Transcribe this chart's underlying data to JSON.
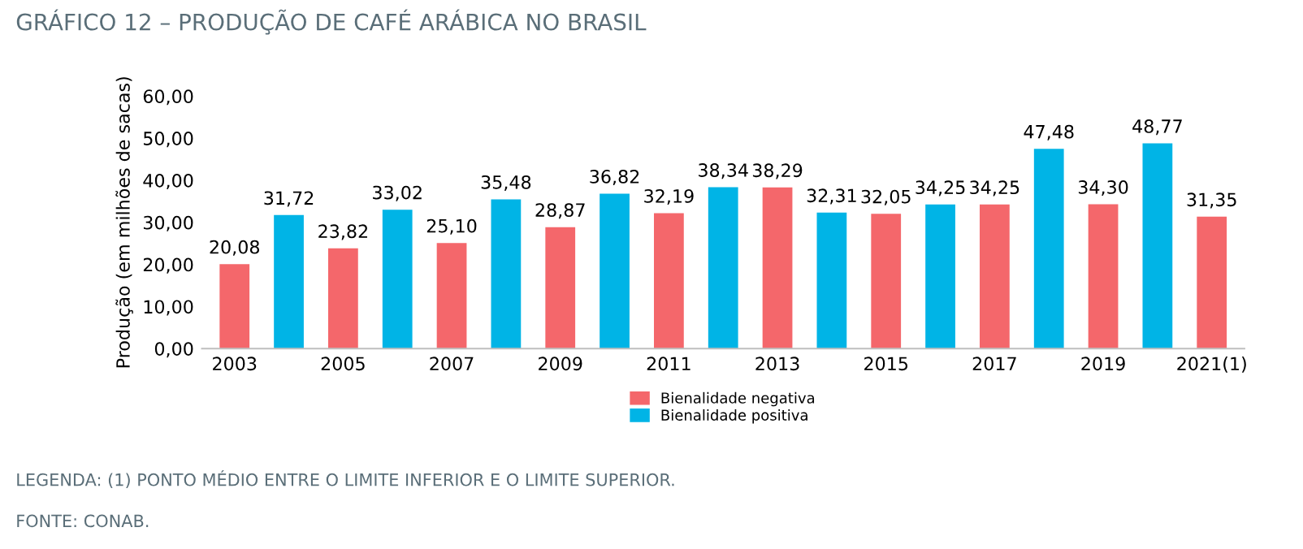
{
  "chart_data": {
    "type": "bar",
    "title": "GRÁFICO 12 – PRODUÇÃO DE CAFÉ ARÁBICA NO BRASIL",
    "ylabel": "Produção (em milhões de sacas)",
    "categories": [
      "2003",
      null,
      "2005",
      null,
      "2007",
      null,
      "2009",
      null,
      "2011",
      null,
      "2013",
      null,
      "2015",
      null,
      "2017",
      null,
      "2019",
      null,
      "2021(1)"
    ],
    "series": [
      {
        "name": "Bienalidade negativa",
        "color": "#f4676b",
        "values": [
          20.08,
          null,
          23.82,
          null,
          25.1,
          null,
          28.87,
          null,
          32.19,
          null,
          38.29,
          null,
          32.05,
          null,
          34.25,
          null,
          34.3,
          null,
          31.35
        ],
        "value_labels": [
          "20,08",
          null,
          "23,82",
          null,
          "25,10",
          null,
          "28,87",
          null,
          "32,19",
          null,
          "38,29",
          null,
          "32,05",
          null,
          "34,25",
          null,
          "34,30",
          null,
          "31,35"
        ]
      },
      {
        "name": "Bienalidade positiva",
        "color": "#00b4e6",
        "values": [
          null,
          31.72,
          null,
          33.02,
          null,
          35.48,
          null,
          36.82,
          null,
          38.34,
          null,
          32.31,
          null,
          34.25,
          null,
          47.48,
          null,
          48.77,
          null
        ],
        "value_labels": [
          null,
          "31,72",
          null,
          "33,02",
          null,
          "35,48",
          null,
          "36,82",
          null,
          "38,34",
          null,
          "32,31",
          null,
          "34,25",
          null,
          "47,48",
          null,
          "48,77",
          null
        ]
      }
    ],
    "ylim": [
      0,
      60
    ],
    "yticks": [
      {
        "value": 0,
        "label": "0,00"
      },
      {
        "value": 10,
        "label": "10,00"
      },
      {
        "value": 20,
        "label": "20,00"
      },
      {
        "value": 30,
        "label": "30,00"
      },
      {
        "value": 40,
        "label": "40,00"
      },
      {
        "value": 50,
        "label": "50,00"
      },
      {
        "value": 60,
        "label": "60,00"
      }
    ],
    "grid": false,
    "legend": "bottom",
    "annotations": [
      "LEGENDA: (1) PONTO MÉDIO ENTRE O LIMITE INFERIOR E O LIMITE SUPERIOR.",
      "FONTE: CONAB."
    ]
  }
}
